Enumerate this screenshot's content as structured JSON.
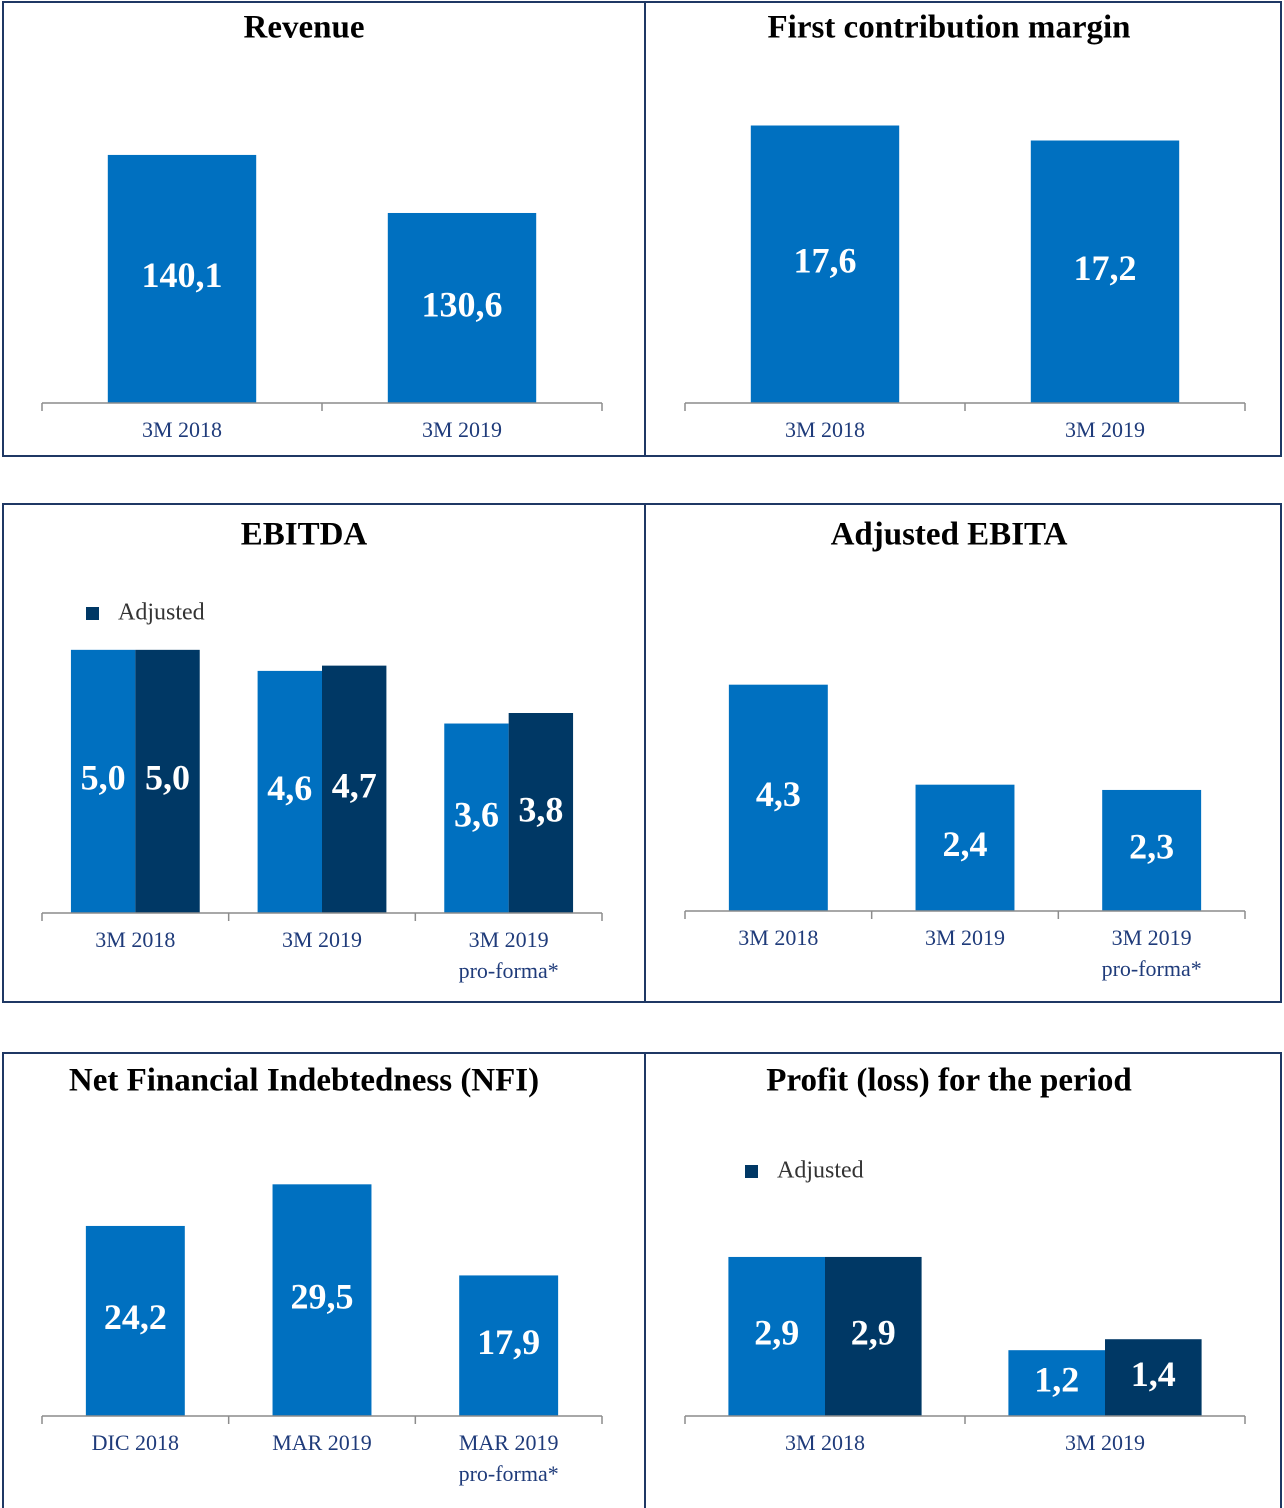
{
  "chart_data": [
    {
      "type": "bar",
      "title": "Revenue",
      "categories": [
        "3M 2018",
        "3M 2019"
      ],
      "ylim": [
        99.5,
        148.6
      ],
      "series": [
        {
          "color": "#0070c0",
          "values": [
            140.1,
            130.6
          ],
          "value_labels": [
            "140,1",
            "130,6"
          ]
        }
      ]
    },
    {
      "type": "bar",
      "title": "First contribution margin",
      "categories": [
        "3M 2018",
        "3M 2019"
      ],
      "ylim": [
        10.2,
        18.2
      ],
      "series": [
        {
          "color": "#0070c0",
          "values": [
            17.6,
            17.2
          ],
          "value_labels": [
            "17,6",
            "17,2"
          ]
        }
      ]
    },
    {
      "type": "bar",
      "title": "EBITDA",
      "categories": [
        "3M 2018",
        "3M 2019",
        "3M 2019\npro-forma*"
      ],
      "ylim": [
        0,
        5.7
      ],
      "legend": "top-left",
      "series": [
        {
          "color": "#0070c0",
          "values": [
            5.0,
            4.6,
            3.6
          ],
          "value_labels": [
            "5,0",
            "4,6",
            "3,6"
          ]
        },
        {
          "name": "Adjusted",
          "color": "#003865",
          "values": [
            5.0,
            4.7,
            3.8
          ],
          "value_labels": [
            "5,0",
            "4,7",
            "3,8"
          ]
        }
      ]
    },
    {
      "type": "bar",
      "title": "Adjusted EBITA",
      "categories": [
        "3M 2018",
        "3M 2019",
        "3M 2019\npro-forma*"
      ],
      "ylim": [
        0,
        5.7
      ],
      "series": [
        {
          "color": "#0070c0",
          "values": [
            4.3,
            2.4,
            2.3
          ],
          "value_labels": [
            "4,3",
            "2,4",
            "2,3"
          ]
        }
      ]
    },
    {
      "type": "bar",
      "title": "Net Financial Indebtedness (NFI)",
      "categories": [
        "DIC 2018",
        "MAR 2019",
        "MAR 2019\npro-forma*"
      ],
      "ylim": [
        0,
        38.2
      ],
      "series": [
        {
          "color": "#0070c0",
          "values": [
            24.2,
            29.5,
            17.9
          ],
          "value_labels": [
            "24,2",
            "29,5",
            "17,9"
          ]
        }
      ]
    },
    {
      "type": "bar",
      "title": "Profit (loss) for the period",
      "categories": [
        "3M 2018",
        "3M 2019"
      ],
      "ylim": [
        0,
        5.47
      ],
      "legend": "top-left",
      "series": [
        {
          "color": "#0070c0",
          "values": [
            2.9,
            1.2
          ],
          "value_labels": [
            "2,9",
            "1,2"
          ]
        },
        {
          "name": "Adjusted",
          "color": "#003865",
          "values": [
            2.9,
            1.4
          ],
          "value_labels": [
            "2,9",
            "1,4"
          ]
        }
      ]
    }
  ]
}
